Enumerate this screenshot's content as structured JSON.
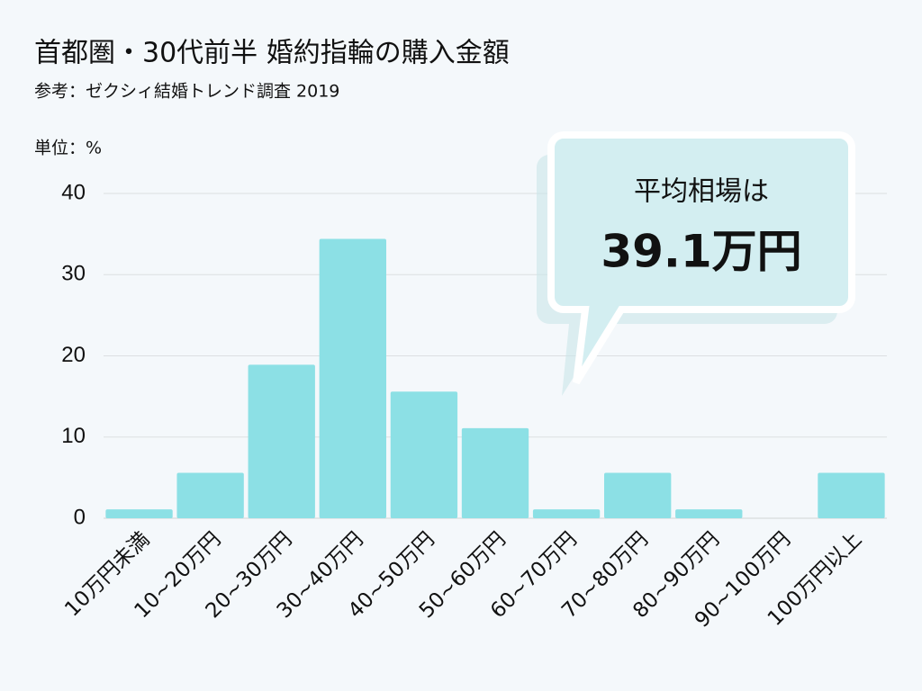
{
  "chart_data": {
    "type": "bar",
    "title": "首都圏・30代前半 婚約指輪の購入金額",
    "subtitle": "参考：ゼクシィ結婚トレンド調査 2019",
    "y_label": "単位：%",
    "annotation": {
      "text": "平均相場は",
      "value": "39.1万円"
    },
    "categories": [
      "10万円未満",
      "10~20万円",
      "20~30万円",
      "30~40万円",
      "40~50万円",
      "50~60万円",
      "60~70万円",
      "70~80万円",
      "80~90万円",
      "90~100万円",
      "100万円以上"
    ],
    "values": [
      1.1,
      5.6,
      18.9,
      34.4,
      15.6,
      11.1,
      1.1,
      5.6,
      1.1,
      0,
      5.6
    ],
    "color": "#8ce0e5",
    "ylim": [
      0,
      40
    ],
    "yticks": [
      0,
      10,
      20,
      30,
      40
    ],
    "grid": true
  }
}
